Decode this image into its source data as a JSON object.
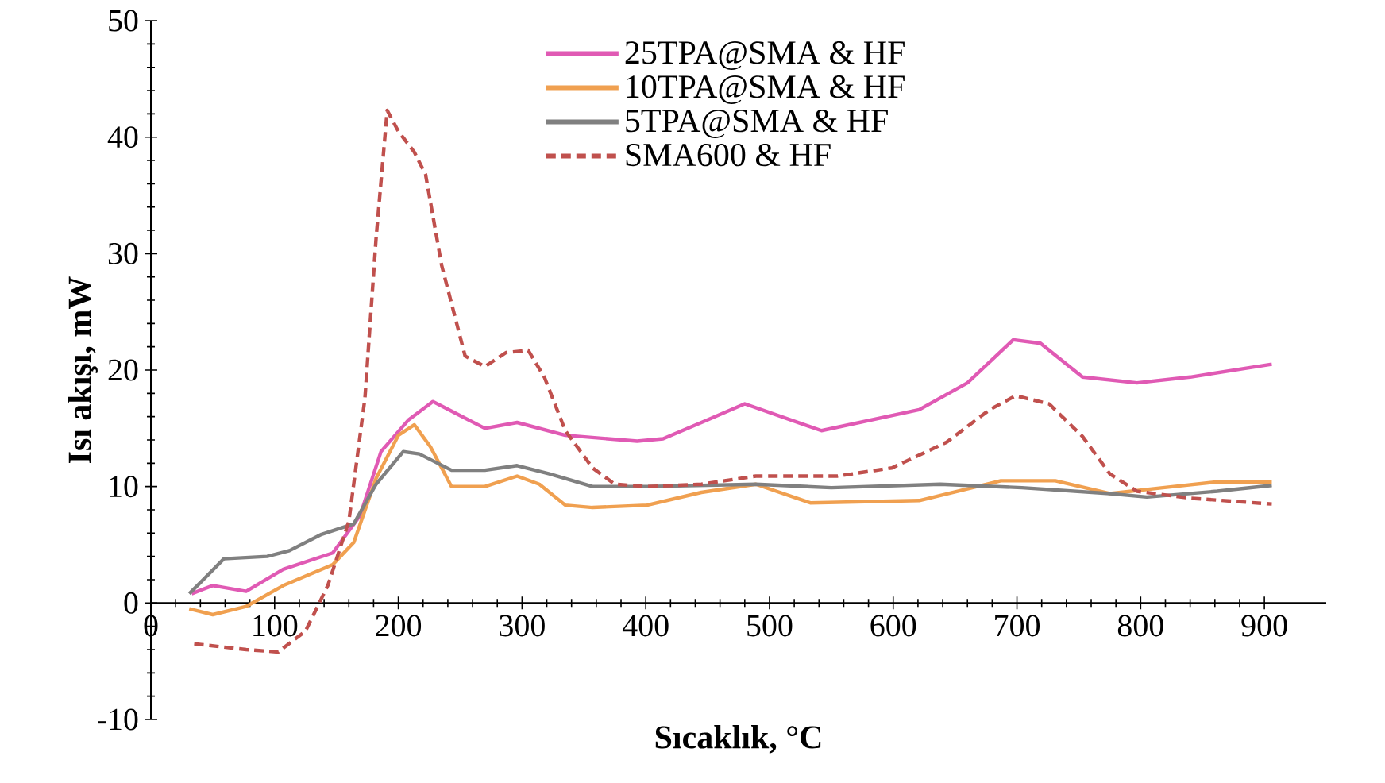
{
  "chart_data": {
    "type": "line",
    "xlabel": "Sıcaklık, °C",
    "ylabel": "Isı akışı, mW",
    "xlim": [
      0,
      950
    ],
    "ylim": [
      -10,
      50
    ],
    "xticks": [
      0,
      100,
      200,
      300,
      400,
      500,
      600,
      700,
      800,
      900
    ],
    "yticks": [
      -10,
      0,
      10,
      20,
      30,
      40,
      50
    ],
    "grid": false,
    "legend": "top right",
    "marker": "none",
    "series": [
      {
        "name": "25TPA@SMA & HF",
        "color": "#e05ab4",
        "line_style": "solid",
        "x": [
          33,
          50,
          77,
          107,
          147,
          169,
          186,
          208,
          228,
          248,
          270,
          296,
          335,
          393,
          414,
          445,
          480,
          542,
          621,
          660,
          697,
          719,
          753,
          797,
          840,
          906
        ],
        "values": [
          0.8,
          1.5,
          1.0,
          2.9,
          4.3,
          7.5,
          13,
          15.7,
          17.3,
          16.2,
          15,
          15.5,
          14.4,
          13.9,
          14.1,
          15.5,
          17.1,
          14.8,
          16.6,
          18.9,
          22.6,
          22.3,
          19.4,
          18.9,
          19.4,
          20.5
        ]
      },
      {
        "name": "10TPA@SMA & HF",
        "color": "#f0a050",
        "line_style": "solid",
        "x": [
          31,
          50,
          77,
          107,
          147,
          164,
          182,
          200,
          213,
          226,
          243,
          270,
          296,
          314,
          335,
          357,
          401,
          445,
          489,
          533,
          621,
          687,
          731,
          775,
          818,
          862,
          906
        ],
        "values": [
          -0.5,
          -1.0,
          -0.3,
          1.5,
          3.3,
          5.2,
          10.7,
          14.4,
          15.3,
          13.4,
          10,
          10,
          10.9,
          10.2,
          8.4,
          8.2,
          8.4,
          9.5,
          10.2,
          8.6,
          8.8,
          10.5,
          10.5,
          9.4,
          9.9,
          10.4,
          10.4
        ]
      },
      {
        "name": "5TPA@SMA & HF",
        "color": "#808080",
        "line_style": "solid",
        "x": [
          31,
          59,
          94,
          112,
          138,
          164,
          182,
          204,
          217,
          243,
          270,
          296,
          322,
          357,
          401,
          489,
          550,
          638,
          704,
          775,
          805,
          862,
          906
        ],
        "values": [
          0.8,
          3.8,
          4.0,
          4.5,
          5.9,
          6.8,
          10.2,
          13.0,
          12.8,
          11.4,
          11.4,
          11.8,
          11.1,
          10,
          10,
          10.2,
          9.9,
          10.2,
          9.9,
          9.4,
          9.1,
          9.6,
          10.1
        ]
      },
      {
        "name": "SMA600 & HF",
        "color": "#c0504d",
        "line_style": "dashed",
        "x": [
          35,
          77,
          103,
          125,
          143,
          160,
          173,
          182,
          191,
          200,
          213,
          222,
          235,
          254,
          270,
          287,
          305,
          318,
          335,
          357,
          375,
          401,
          445,
          489,
          555,
          599,
          643,
          678,
          699,
          726,
          753,
          775,
          797,
          840,
          906
        ],
        "values": [
          -3.5,
          -4.0,
          -4.2,
          -2.4,
          1.5,
          7,
          17.6,
          31.3,
          42.3,
          40.5,
          38.7,
          36.8,
          29,
          21.2,
          20.3,
          21.5,
          21.7,
          19.4,
          14.8,
          11.6,
          10.2,
          10,
          10.2,
          10.9,
          10.9,
          11.6,
          13.8,
          16.6,
          17.8,
          17.1,
          14.3,
          11.1,
          9.6,
          9.0,
          8.5
        ]
      }
    ]
  }
}
